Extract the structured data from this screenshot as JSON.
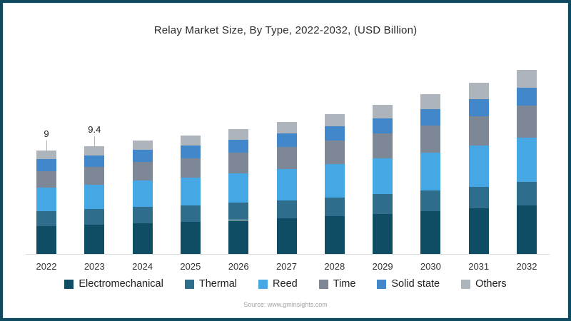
{
  "frame": {
    "border_color": "#0f4a60",
    "background": "#ffffff"
  },
  "title": "Relay Market Size, By Type, 2022-2032, (USD Billion)",
  "source": "Source: www.gminsights.com",
  "chart_data": {
    "type": "bar",
    "stacked": true,
    "title": "Relay Market Size, By Type, 2022-2032, (USD Billion)",
    "xlabel": "",
    "ylabel": "USD Billion",
    "ylim": [
      0,
      16
    ],
    "grid": false,
    "legend_position": "bottom",
    "categories": [
      "2022",
      "2023",
      "2024",
      "2025",
      "2026",
      "2027",
      "2028",
      "2029",
      "2030",
      "2031",
      "2032"
    ],
    "series": [
      {
        "name": "Electromechanical",
        "color": "#0e4d63",
        "values": [
          2.45,
          2.55,
          2.7,
          2.8,
          2.95,
          3.1,
          3.3,
          3.5,
          3.7,
          3.95,
          4.2
        ]
      },
      {
        "name": "Thermal",
        "color": "#2e6d8c",
        "values": [
          1.3,
          1.35,
          1.4,
          1.45,
          1.5,
          1.55,
          1.6,
          1.7,
          1.8,
          1.9,
          2.05
        ]
      },
      {
        "name": "Reed",
        "color": "#45a7e3",
        "values": [
          2.05,
          2.15,
          2.3,
          2.4,
          2.55,
          2.75,
          2.9,
          3.1,
          3.35,
          3.6,
          3.9
        ]
      },
      {
        "name": "Time",
        "color": "#7e8795",
        "values": [
          1.4,
          1.5,
          1.6,
          1.7,
          1.8,
          1.9,
          2.05,
          2.2,
          2.35,
          2.55,
          2.75
        ]
      },
      {
        "name": "Solid state",
        "color": "#4287c9",
        "values": [
          1.05,
          1.05,
          1.05,
          1.1,
          1.15,
          1.2,
          1.25,
          1.3,
          1.4,
          1.5,
          1.6
        ]
      },
      {
        "name": "Others",
        "color": "#adb4bc",
        "values": [
          0.75,
          0.8,
          0.85,
          0.85,
          0.95,
          1.0,
          1.1,
          1.2,
          1.3,
          1.4,
          1.5
        ]
      }
    ],
    "totals": [
      9,
      9.4,
      9.9,
      10.3,
      10.9,
      11.5,
      12.2,
      13,
      13.9,
      14.9,
      16
    ],
    "bar_labels": [
      {
        "category": "2022",
        "text": "9"
      },
      {
        "category": "2023",
        "text": "9.4"
      }
    ]
  }
}
